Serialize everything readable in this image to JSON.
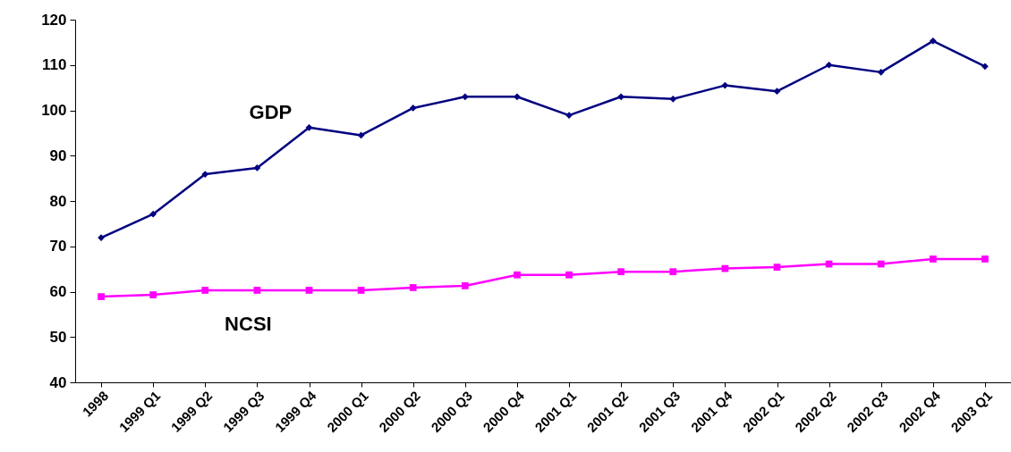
{
  "chart_data": {
    "type": "line",
    "categories": [
      "1998",
      "1999 Q1",
      "1999 Q2",
      "1999 Q3",
      "1999 Q4",
      "2000 Q1",
      "2000 Q2",
      "2000 Q3",
      "2000 Q4",
      "2001 Q1",
      "2001 Q2",
      "2001 Q3",
      "2001 Q4",
      "2002 Q1",
      "2002 Q2",
      "2002 Q3",
      "2002 Q4",
      "2003 Q1"
    ],
    "series": [
      {
        "name": "GDP",
        "color": "#000080",
        "marker": "diamond",
        "values": [
          71.9,
          77.1,
          85.9,
          87.3,
          96.2,
          94.5,
          100.5,
          103,
          103,
          98.9,
          103,
          102.5,
          105.5,
          104.2,
          110,
          108.4,
          115.3,
          109.7
        ]
      },
      {
        "name": "NCSI",
        "color": "#ff00ff",
        "marker": "square",
        "values": [
          58.9,
          59.3,
          60.3,
          60.3,
          60.3,
          60.3,
          60.9,
          61.3,
          63.7,
          63.7,
          64.4,
          64.4,
          65.1,
          65.4,
          66.1,
          66.1,
          67.2,
          67.2
        ]
      }
    ],
    "ylim": [
      40,
      120
    ],
    "yticks": [
      40,
      50,
      60,
      70,
      80,
      90,
      100,
      110,
      120
    ],
    "grid": false,
    "line_style": "solid"
  }
}
